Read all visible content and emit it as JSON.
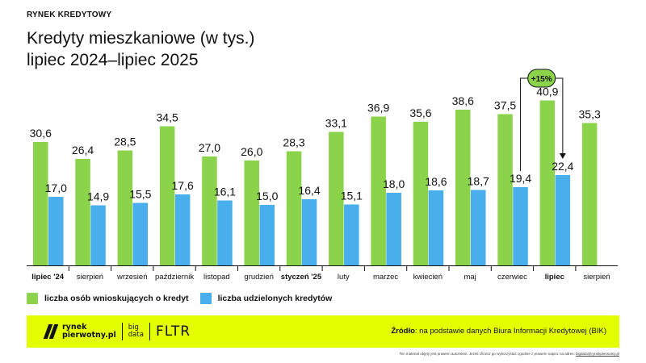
{
  "header": {
    "kicker": "RYNEK KREDYTOWY",
    "title_line1": "Kredyty mieszkaniowe (w tys.)",
    "title_line2": "lipiec 2024–lipiec 2025"
  },
  "chart_data": {
    "type": "bar",
    "title": "Kredyty mieszkaniowe (w tys.) lipiec 2024–lipiec 2025",
    "categories": [
      "lipiec '24",
      "sierpień",
      "wrzesień",
      "październik",
      "listopad",
      "grudzień",
      "styczeń '25",
      "luty",
      "marzec",
      "kwiecień",
      "maj",
      "czerwiec",
      "lipiec",
      "sierpień"
    ],
    "bold_categories": [
      0,
      6,
      12
    ],
    "series": [
      {
        "name": "liczba osób wnioskujących o kredyt",
        "color": "#8ad34a",
        "values": [
          30.6,
          26.4,
          28.5,
          34.5,
          27.0,
          26.0,
          28.3,
          33.1,
          36.9,
          35.6,
          38.6,
          37.5,
          40.9,
          35.3
        ],
        "labels": [
          "30,6",
          "26,4",
          "28,5",
          "34,5",
          "27,0",
          "26,0",
          "28,3",
          "33,1",
          "36,9",
          "35,6",
          "38,6",
          "37,5",
          "40,9",
          "35,3"
        ]
      },
      {
        "name": "liczba udzielonych kredytów",
        "color": "#48aeec",
        "values": [
          17.0,
          14.9,
          15.5,
          17.6,
          16.1,
          15.0,
          16.4,
          15.1,
          18.0,
          18.6,
          18.7,
          19.4,
          22.4,
          null
        ],
        "labels": [
          "17,0",
          "14,9",
          "15,5",
          "17,6",
          "16,1",
          "15,0",
          "16,4",
          "15,1",
          "18,0",
          "18,6",
          "18,7",
          "19,4",
          "22,4",
          null
        ]
      }
    ],
    "ylim": [
      0,
      46
    ],
    "annotation": {
      "text": "+15%",
      "from_index": 11,
      "to_index": 12,
      "series": 1,
      "badge_color": "#8ad34a"
    },
    "grid": false
  },
  "legend": {
    "applications_label": "liczba osób wnioskujących o kredyt",
    "credits_label": "liczba udzielonych kredytów",
    "applications_color": "#8ad34a",
    "credits_color": "#48aeec"
  },
  "footer": {
    "logo_line1": "rynek",
    "logo_line2": "pierwotny.pl",
    "bigdata_line1": "big",
    "bigdata_line2": "data",
    "fltr": "FLTR",
    "source_label": "Źródło",
    "source_text": ": na podstawie danych Biura Informacji Kredytowej (BIK)",
    "background": "#e4ff00"
  },
  "copyright": {
    "text": "Ten materiał objęty jest prawem autorskim. Jeżeli chcesz go wykorzystać zgodnie z prawem napisz na adres: ",
    "email": "bigdata@rynekpierwotny.pl"
  }
}
